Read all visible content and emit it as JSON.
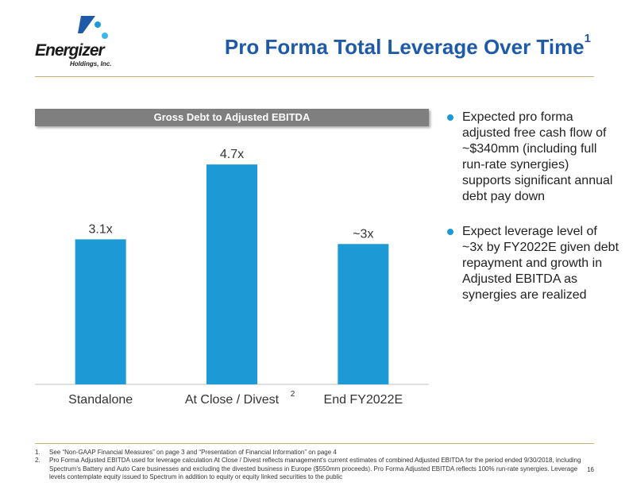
{
  "logo": {
    "brand": "Energizer",
    "sub": "Holdings, Inc.",
    "colors": [
      "#1e5aa8",
      "#1b9ad6",
      "#3fb6ea"
    ]
  },
  "title": {
    "text": "Pro Forma Total Leverage Over Time",
    "sup": "1"
  },
  "chart_data": {
    "type": "bar",
    "title": "Gross Debt to Adjusted EBITDA",
    "categories": [
      "Standalone",
      "At Close / Divest",
      "End FY2022E"
    ],
    "category_superscripts": [
      "",
      "2",
      ""
    ],
    "values": [
      3.1,
      4.7,
      3.0
    ],
    "value_labels": [
      "3.1x",
      "4.7x",
      "~3x"
    ],
    "ylim": [
      0,
      5.5
    ],
    "xlabel": "",
    "ylabel": "",
    "grid": false,
    "bar_color": "#1b9ad6",
    "header_color": "#7f7f7f"
  },
  "bullets": [
    "Expected pro forma adjusted free cash flow of ~$340mm (including full run-rate synergies) supports significant annual debt pay down",
    "Expect leverage level of ~3x by FY2022E given debt repayment and growth in Adjusted EBITDA as synergies are realized"
  ],
  "footnotes": [
    {
      "num": "1.",
      "text": "See “Non-GAAP Financial Measures” on page 3 and “Presentation of Financial Information” on page 4"
    },
    {
      "num": "2.",
      "text": "Pro Forma Adjusted EBITDA used for leverage calculation At Close / Divest reflects management's current estimates of combined Adjusted EBITDA for the period ended 9/30/2018, including Spectrum’s Battery and Auto Care businesses and excluding the divested business in Europe ($550mm proceeds). Pro Forma Adjusted EBITDA reflects 100% run-rate synergies. Leverage levels contemplate equity issued to Spectrum in addition to equity or equity linked securities to the public"
    }
  ],
  "page_number": "16"
}
